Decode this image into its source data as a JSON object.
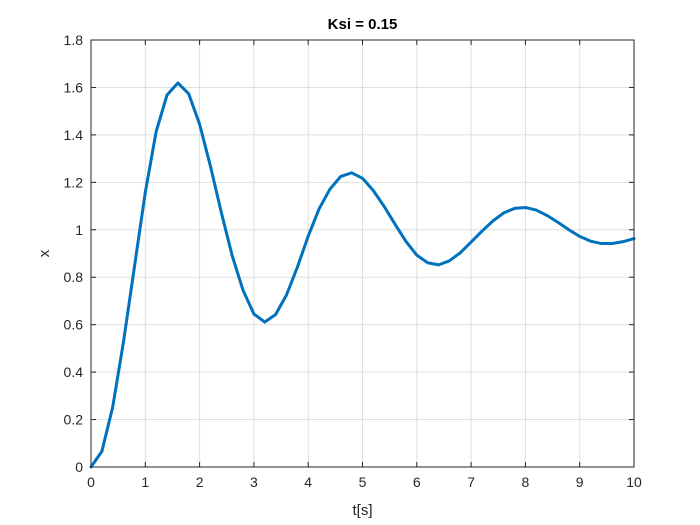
{
  "chart_data": {
    "type": "line",
    "title": "Ksi = 0.15",
    "xlabel": "t[s]",
    "ylabel": "x",
    "xlim": [
      0,
      10
    ],
    "ylim": [
      0,
      1.8
    ],
    "grid": true,
    "xticks": [
      0,
      1,
      2,
      3,
      4,
      5,
      6,
      7,
      8,
      9,
      10
    ],
    "xtick_labels": [
      "0",
      "1",
      "2",
      "3",
      "4",
      "5",
      "6",
      "7",
      "8",
      "9",
      "10"
    ],
    "yticks": [
      0,
      0.2,
      0.4,
      0.6,
      0.8,
      1.0,
      1.2,
      1.4,
      1.6,
      1.8
    ],
    "ytick_labels": [
      "0",
      "0.2",
      "0.4",
      "0.6",
      "0.8",
      "1",
      "1.2",
      "1.4",
      "1.6",
      "1.8"
    ],
    "series": [
      {
        "color": "#0072bd",
        "x": [
          0,
          0.2,
          0.4,
          0.6,
          0.8,
          1.0,
          1.2,
          1.4,
          1.6,
          1.8,
          2.0,
          2.2,
          2.4,
          2.6,
          2.8,
          3.0,
          3.2,
          3.4,
          3.6,
          3.8,
          4.0,
          4.2,
          4.4,
          4.6,
          4.8,
          5.0,
          5.2,
          5.4,
          5.6,
          5.8,
          6.0,
          6.2,
          6.4,
          6.6,
          6.8,
          7.0,
          7.2,
          7.4,
          7.6,
          7.8,
          8.0,
          8.2,
          8.4,
          8.6,
          8.8,
          9.0,
          9.2,
          9.4,
          9.6,
          9.8,
          10.0
        ],
        "y": [
          0,
          0.066,
          0.253,
          0.53,
          0.844,
          1.158,
          1.414,
          1.568,
          1.619,
          1.573,
          1.445,
          1.268,
          1.073,
          0.891,
          0.745,
          0.645,
          0.611,
          0.643,
          0.725,
          0.842,
          0.973,
          1.088,
          1.171,
          1.225,
          1.24,
          1.217,
          1.165,
          1.098,
          1.023,
          0.951,
          0.893,
          0.861,
          0.852,
          0.869,
          0.903,
          0.948,
          0.994,
          1.037,
          1.071,
          1.09,
          1.094,
          1.083,
          1.06,
          1.031,
          1.0,
          0.972,
          0.952,
          0.942,
          0.942,
          0.95,
          0.963
        ]
      }
    ]
  }
}
